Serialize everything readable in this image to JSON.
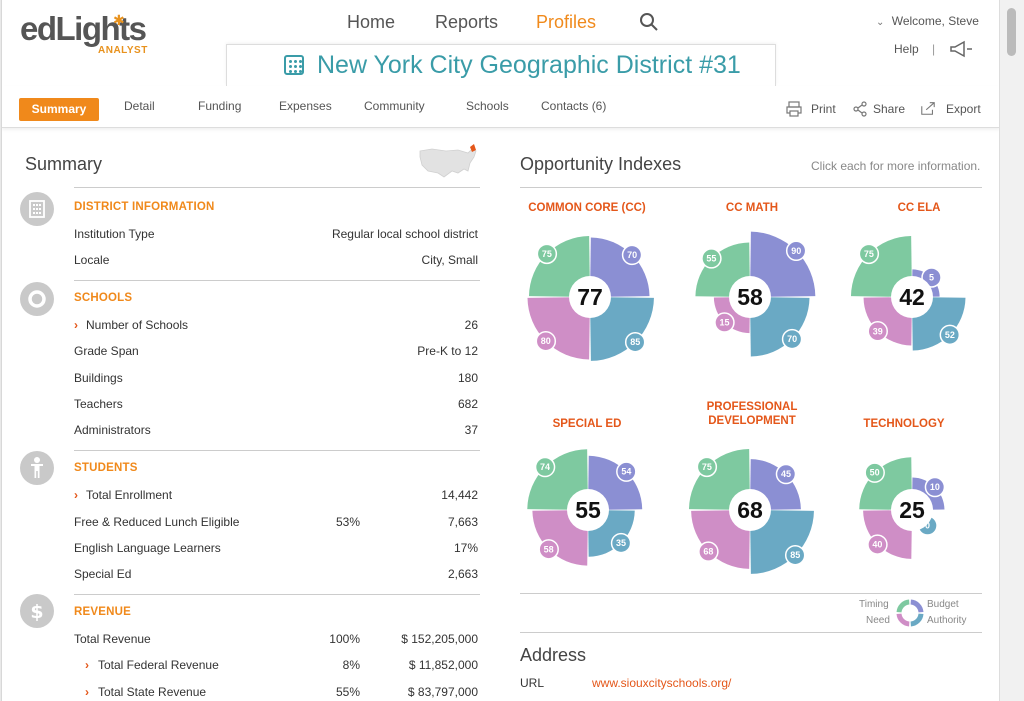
{
  "header": {
    "logo_word": "edLights",
    "logo_sub": "ANALYST",
    "nav": {
      "home": "Home",
      "reports": "Reports",
      "profiles": "Profiles"
    },
    "welcome": "Welcome, Steve",
    "help": "Help",
    "separator": "|",
    "district_title": "New York City Geographic District #31",
    "accent_color": "#f0891b",
    "title_color": "#3a9ca8"
  },
  "tabs": {
    "summary": "Summary",
    "detail": "Detail",
    "funding": "Funding",
    "expenses": "Expenses",
    "community": "Community",
    "schools": "Schools",
    "contacts": "Contacts (6)"
  },
  "tools": {
    "print": "Print",
    "share": "Share",
    "export": "Export"
  },
  "summary": {
    "title": "Summary",
    "district_info": {
      "heading": "DISTRICT INFORMATION",
      "rows": [
        {
          "label": "Institution Type",
          "value": "Regular local school district"
        },
        {
          "label": "Locale",
          "value": "City, Small"
        }
      ]
    },
    "schools": {
      "heading": "SCHOOLS",
      "rows": [
        {
          "label": "Number of Schools",
          "value": "26"
        },
        {
          "label": "Grade Span",
          "value": "Pre-K to 12"
        },
        {
          "label": "Buildings",
          "value": "180"
        },
        {
          "label": "Teachers",
          "value": "682"
        },
        {
          "label": "Administrators",
          "value": "37"
        }
      ]
    },
    "students": {
      "heading": "STUDENTS",
      "rows": [
        {
          "label": "Total Enrollment",
          "pct": "",
          "value": "14,442"
        },
        {
          "label": "Free & Reduced Lunch Eligible",
          "pct": "53%",
          "value": "7,663"
        },
        {
          "label": "English Language Learners",
          "pct": "",
          "value": "17%"
        },
        {
          "label": "Special Ed",
          "pct": "",
          "value": "2,663"
        }
      ]
    },
    "revenue": {
      "heading": "REVENUE",
      "rows": [
        {
          "label": "Total Revenue",
          "pct": "100%",
          "value": "$ 152,205,000"
        },
        {
          "label": "Total Federal Revenue",
          "pct": "8%",
          "value": "$ 11,852,000"
        },
        {
          "label": "Total State Revenue",
          "pct": "55%",
          "value": "$ 83,797,000"
        }
      ]
    }
  },
  "opportunity": {
    "title": "Opportunity Indexes",
    "hint": "Click each for more information.",
    "quadrant_colors": {
      "timing": "#7ec9a0",
      "budget": "#8b8fd3",
      "authority": "#6aa9c4",
      "need": "#cf8ec6"
    },
    "charts": [
      {
        "label": "COMMON CORE (CC)",
        "score": "77",
        "timing": 75,
        "budget": 70,
        "authority": 85,
        "need": 80
      },
      {
        "label": "CC MATH",
        "score": "58",
        "timing": 55,
        "budget": 90,
        "authority": 70,
        "need": 15
      },
      {
        "label": "CC ELA",
        "score": "42",
        "timing": 75,
        "budget": 5,
        "authority": 52,
        "need": 39
      },
      {
        "label": "SPECIAL ED",
        "score": "55",
        "timing": 74,
        "budget": 54,
        "authority": 35,
        "need": 58
      },
      {
        "label": "PROFESSIONAL DEVELOPMENT",
        "score": "68",
        "timing": 75,
        "budget": 45,
        "authority": 85,
        "need": 68
      },
      {
        "label": "TECHNOLOGY",
        "score": "25",
        "timing": 50,
        "budget": 10,
        "authority": 0,
        "need": 40
      }
    ],
    "legend": {
      "timing": "Timing",
      "budget": "Budget",
      "need": "Need",
      "authority": "Authority"
    }
  },
  "address": {
    "title": "Address",
    "url_label": "URL",
    "url_value": "www.siouxcityschools.org/"
  }
}
